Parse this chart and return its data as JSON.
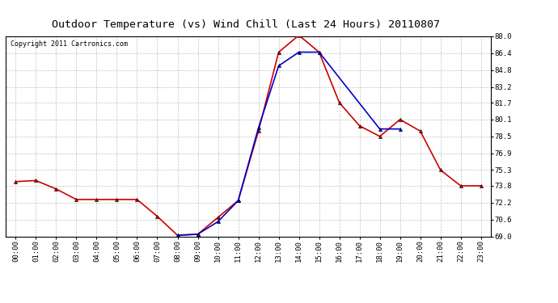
{
  "title": "Outdoor Temperature (vs) Wind Chill (Last 24 Hours) 20110807",
  "copyright": "Copyright 2011 Cartronics.com",
  "x_labels": [
    "00:00",
    "01:00",
    "02:00",
    "03:00",
    "04:00",
    "05:00",
    "06:00",
    "07:00",
    "08:00",
    "09:00",
    "10:00",
    "11:00",
    "12:00",
    "13:00",
    "14:00",
    "15:00",
    "16:00",
    "17:00",
    "18:00",
    "19:00",
    "20:00",
    "21:00",
    "22:00",
    "23:00"
  ],
  "temp_data": [
    74.2,
    74.3,
    73.5,
    72.5,
    72.5,
    72.5,
    72.5,
    70.9,
    69.1,
    69.2,
    70.8,
    72.4,
    79.0,
    86.5,
    88.1,
    86.5,
    81.7,
    79.5,
    78.5,
    80.1,
    79.0,
    75.3,
    73.8,
    73.8
  ],
  "windchill_data": [
    null,
    null,
    null,
    null,
    null,
    null,
    null,
    null,
    69.1,
    69.2,
    70.4,
    72.4,
    79.3,
    85.2,
    86.5,
    86.5,
    null,
    null,
    79.2,
    79.2,
    null,
    null,
    null,
    null
  ],
  "ylim": [
    69.0,
    88.0
  ],
  "yticks": [
    69.0,
    70.6,
    72.2,
    73.8,
    75.3,
    76.9,
    78.5,
    80.1,
    81.7,
    83.2,
    84.8,
    86.4,
    88.0
  ],
  "temp_color": "#cc0000",
  "windchill_color": "#0000cc",
  "bg_color": "#ffffff",
  "grid_color": "#bbbbbb",
  "title_fontsize": 9.5,
  "copyright_fontsize": 6,
  "tick_fontsize": 6.5,
  "line_width": 1.2,
  "marker_size": 3
}
